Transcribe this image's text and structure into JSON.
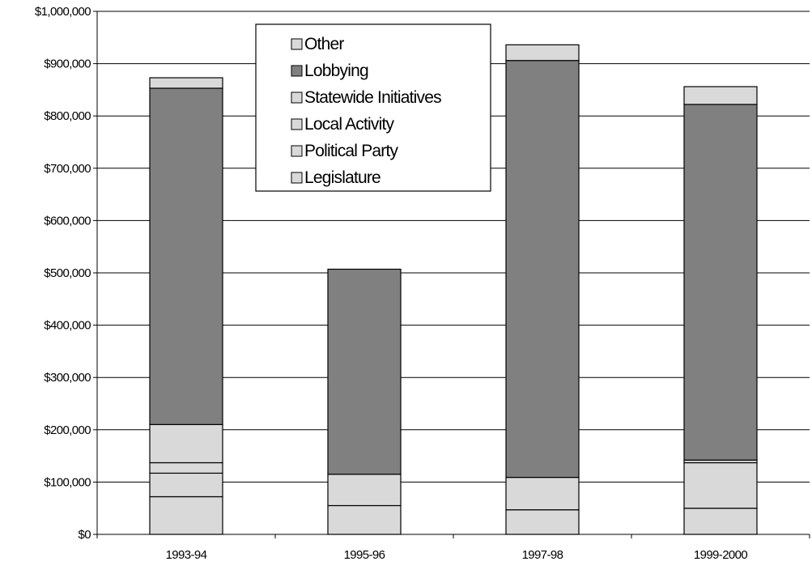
{
  "chart_data": {
    "type": "bar",
    "stacked": true,
    "title": "",
    "xlabel": "",
    "ylabel": "",
    "categories": [
      "1993-94",
      "1995-96",
      "1997-98",
      "1999-2000"
    ],
    "series": [
      {
        "name": "Legislature",
        "values": [
          72000,
          55000,
          47000,
          50000
        ],
        "color": "#d9d9d9"
      },
      {
        "name": "Political Party",
        "values": [
          45000,
          0,
          0,
          0
        ],
        "color": "#d9d9d9"
      },
      {
        "name": "Local Activity",
        "values": [
          20000,
          60000,
          62000,
          87000
        ],
        "color": "#d9d9d9"
      },
      {
        "name": "Statewide Initiatives",
        "values": [
          73000,
          0,
          0,
          5000
        ],
        "color": "#d9d9d9"
      },
      {
        "name": "Lobbying",
        "values": [
          643000,
          392000,
          797000,
          680000
        ],
        "color": "#808080"
      },
      {
        "name": "Other",
        "values": [
          20000,
          0,
          30000,
          34000
        ],
        "color": "#d9d9d9"
      }
    ],
    "ylim": [
      0,
      1000000
    ],
    "yticks": [
      0,
      100000,
      200000,
      300000,
      400000,
      500000,
      600000,
      700000,
      800000,
      900000,
      1000000
    ],
    "ytick_labels": [
      "$0",
      "$100,000",
      "$200,000",
      "$300,000",
      "$400,000",
      "$500,000",
      "$600,000",
      "$700,000",
      "$800,000",
      "$900,000",
      "$1,000,000"
    ],
    "grid": true,
    "legend_position": "top-center",
    "legend_order": [
      "Other",
      "Lobbying",
      "Statewide Initiatives",
      "Local Activity",
      "Political Party",
      "Legislature"
    ]
  }
}
